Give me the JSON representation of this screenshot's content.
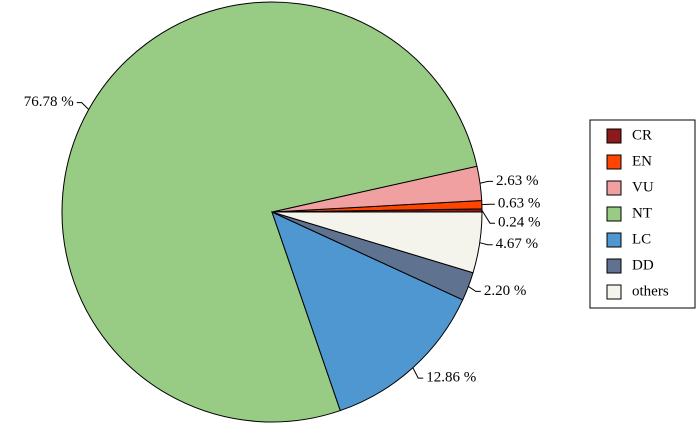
{
  "chart_data": {
    "type": "pie",
    "categories": [
      "CR",
      "EN",
      "VU",
      "NT",
      "LC",
      "DD",
      "others"
    ],
    "values": [
      0.24,
      0.63,
      2.63,
      76.78,
      12.86,
      2.2,
      4.67
    ],
    "value_labels": [
      "0.24 %",
      "0.63 %",
      "2.63 %",
      "76.78 %",
      "12.86 %",
      "2.20 %",
      "4.67 %"
    ],
    "colors": [
      "#8b1a1a",
      "#ff4500",
      "#f0a0a0",
      "#98cc85",
      "#4f97d1",
      "#5f7391",
      "#f5f4ec"
    ],
    "legend": "right"
  }
}
